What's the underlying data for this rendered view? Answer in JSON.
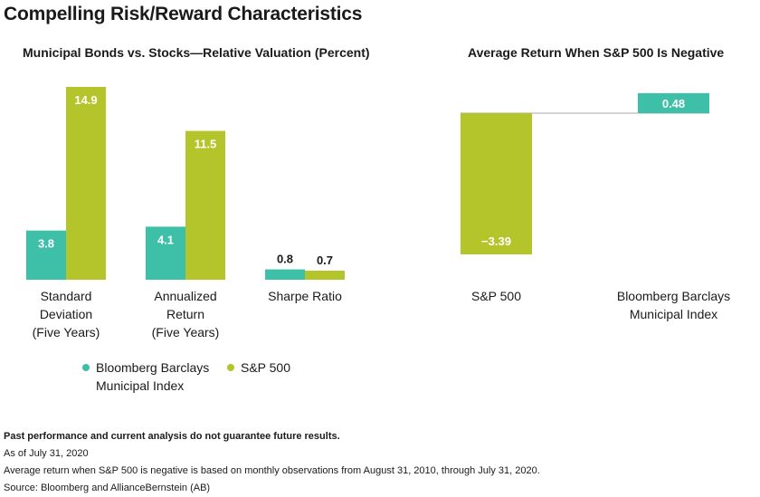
{
  "title": "Compelling Risk/Reward Characteristics",
  "colors": {
    "muni": "#3dbfa8",
    "sp500": "#b3c52a",
    "zero_line": "#aaaaaa"
  },
  "chart_data": [
    {
      "type": "bar",
      "title": "Municipal Bonds vs. Stocks—Relative Valuation (Percent)",
      "categories": [
        "Standard\nDeviation\n(Five Years)",
        "Annualized\nReturn\n(Five Years)",
        "Sharpe Ratio"
      ],
      "series": [
        {
          "name": "Bloomberg Barclays\nMunicipal Index",
          "values": [
            3.8,
            4.1,
            0.8
          ],
          "labels": [
            "3.8",
            "4.1",
            "0.8"
          ]
        },
        {
          "name": "S&P 500",
          "values": [
            14.9,
            11.5,
            0.7
          ],
          "labels": [
            "14.9",
            "11.5",
            "0.7"
          ]
        }
      ],
      "ylim": [
        0,
        14.9
      ],
      "grid": false,
      "legend": "bottom"
    },
    {
      "type": "bar",
      "title": "Average Return When S&P 500 Is Negative",
      "categories": [
        "S&P 500",
        "Bloomberg Barclays\nMunicipal Index"
      ],
      "values": [
        -3.39,
        0.48
      ],
      "labels": [
        "−3.39",
        "0.48"
      ],
      "ylim": [
        -3.39,
        0.48
      ],
      "grid": false
    }
  ],
  "notes": {
    "disclaimer": "Past performance and current analysis do not guarantee future results.",
    "as_of": "As of July 31, 2020",
    "method": "Average return when S&P 500 is negative is based on monthly observations from August 31, 2010, through July 31, 2020.",
    "source": "Source: Bloomberg and AllianceBernstein (AB)"
  }
}
